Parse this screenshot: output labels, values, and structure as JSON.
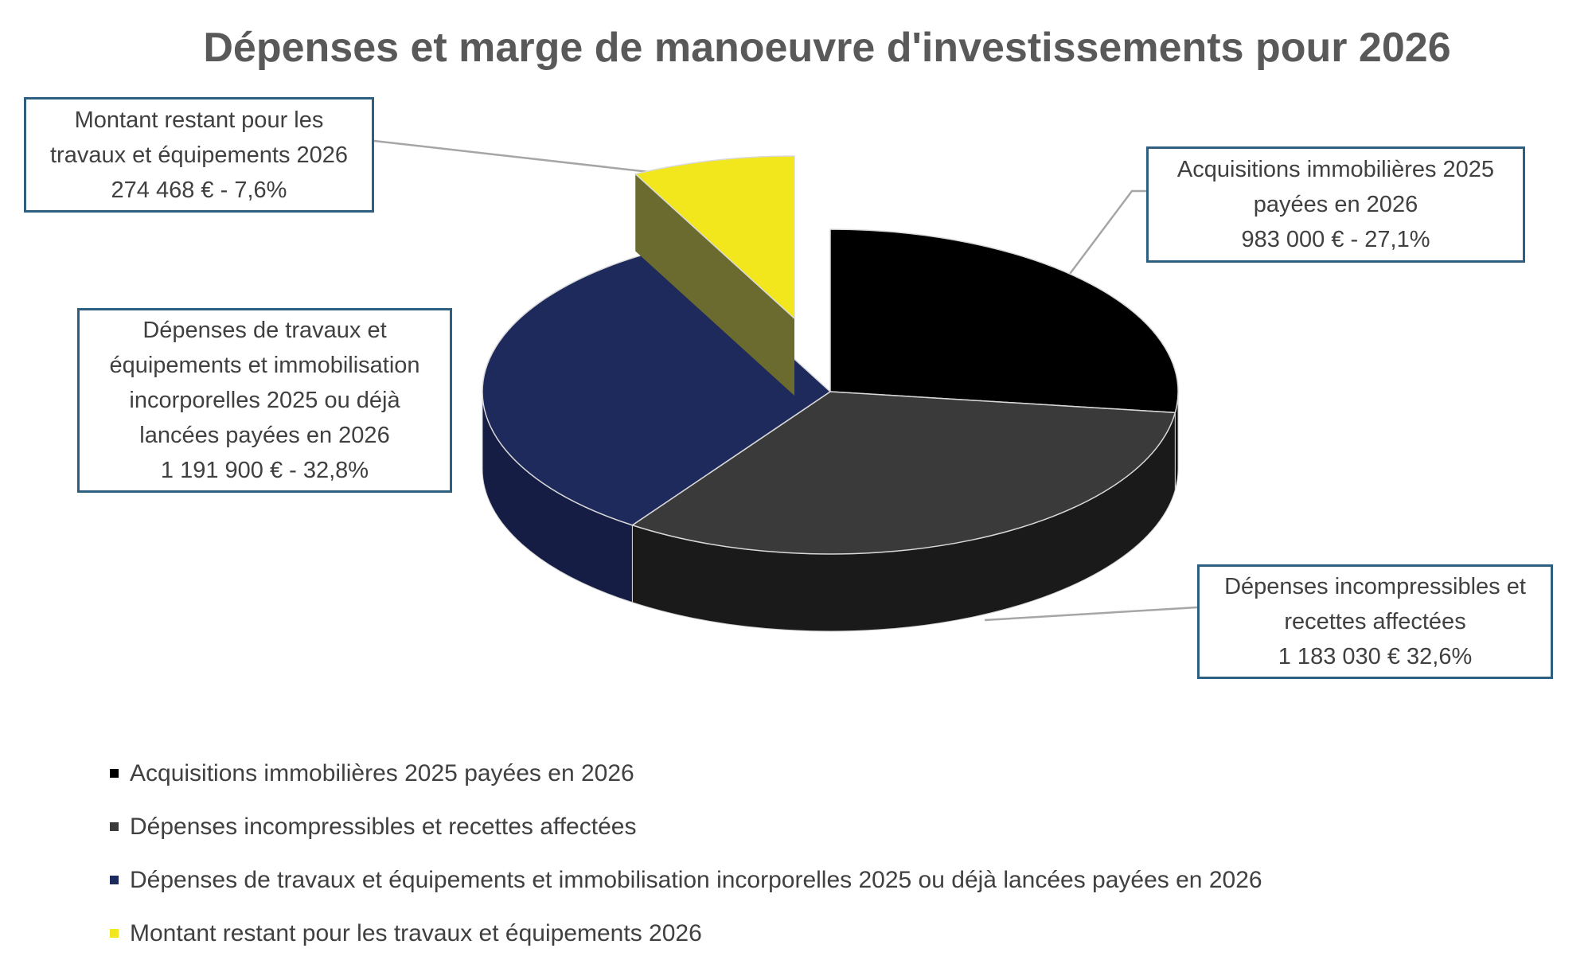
{
  "chart_data": {
    "type": "pie",
    "title": "Dépenses et marge de manoeuvre d'investissements pour 2026",
    "style": "3d-exploded",
    "legend_position": "bottom",
    "slices": [
      {
        "name": "Acquisitions immobilières 2025 payées en 2026",
        "value": 983000,
        "percent": 27.1,
        "color": "#000000",
        "side_color": "#0a0a0a",
        "label_lines": [
          "Acquisitions immobilières 2025",
          "payées en 2026",
          "983 000 € - 27,1%"
        ]
      },
      {
        "name": "Dépenses incompressibles et recettes affectées",
        "value": 1183030,
        "percent": 32.6,
        "color": "#3a3a3a",
        "side_color": "#1a1a1a",
        "label_lines": [
          "Dépenses incompressibles et",
          "recettes affectées",
          "1 183 030 € 32,6%"
        ]
      },
      {
        "name": "Dépenses de travaux et équipements et immobilisation incorporelles 2025 ou déjà lancées payées en 2026",
        "value": 1191900,
        "percent": 32.8,
        "color": "#1f2a5c",
        "side_color": "#151d45",
        "label_lines": [
          "Dépenses de travaux et",
          "équipements et immobilisation",
          "incorporelles 2025 ou déjà",
          "lancées payées en 2026",
          "1 191  900 € - 32,8%"
        ]
      },
      {
        "name": "Montant restant pour les travaux et équipements 2026",
        "value": 274468,
        "percent": 7.6,
        "color": "#f2e61c",
        "side_color": "#6b6a2f",
        "exploded": true,
        "label_lines": [
          "Montant restant pour les",
          "travaux et équipements 2026",
          "274 468 € - 7,6%"
        ]
      }
    ]
  }
}
